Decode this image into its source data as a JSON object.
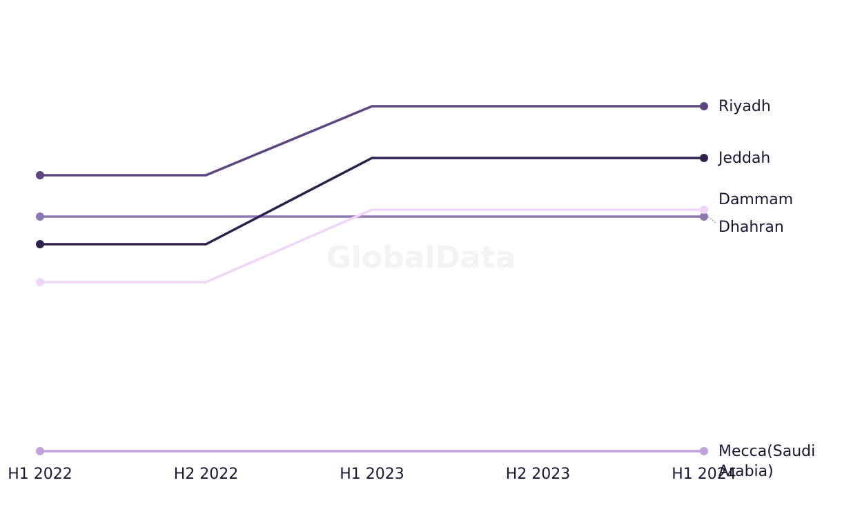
{
  "watermark": "GlobalData",
  "chart_data": {
    "type": "line",
    "title": "",
    "xlabel": "",
    "ylabel": "",
    "categories": [
      "H1 2022",
      "H2 2022",
      "H1 2023",
      "H2 2023",
      "H1 2024"
    ],
    "ylim": [
      0,
      6
    ],
    "grid": false,
    "legend": "end-of-line labels",
    "series": [
      {
        "name": "Riyadh",
        "color": "#5c4580",
        "values": [
          4,
          4,
          5,
          5,
          5
        ]
      },
      {
        "name": "Jeddah",
        "color": "#2e1f4d",
        "values": [
          3,
          3,
          4.25,
          4.25,
          4.25
        ]
      },
      {
        "name": "Dammam",
        "color": "#f0d5f8",
        "values": [
          2.45,
          2.45,
          3.5,
          3.5,
          3.5
        ]
      },
      {
        "name": "Dhahran",
        "color": "#8d78b4",
        "values": [
          3.4,
          3.4,
          3.4,
          3.4,
          3.4
        ]
      },
      {
        "name": "Mecca(Saudi Arabia)",
        "color": "#bfa1dd",
        "values": [
          0,
          0,
          0,
          0,
          0
        ]
      }
    ]
  }
}
